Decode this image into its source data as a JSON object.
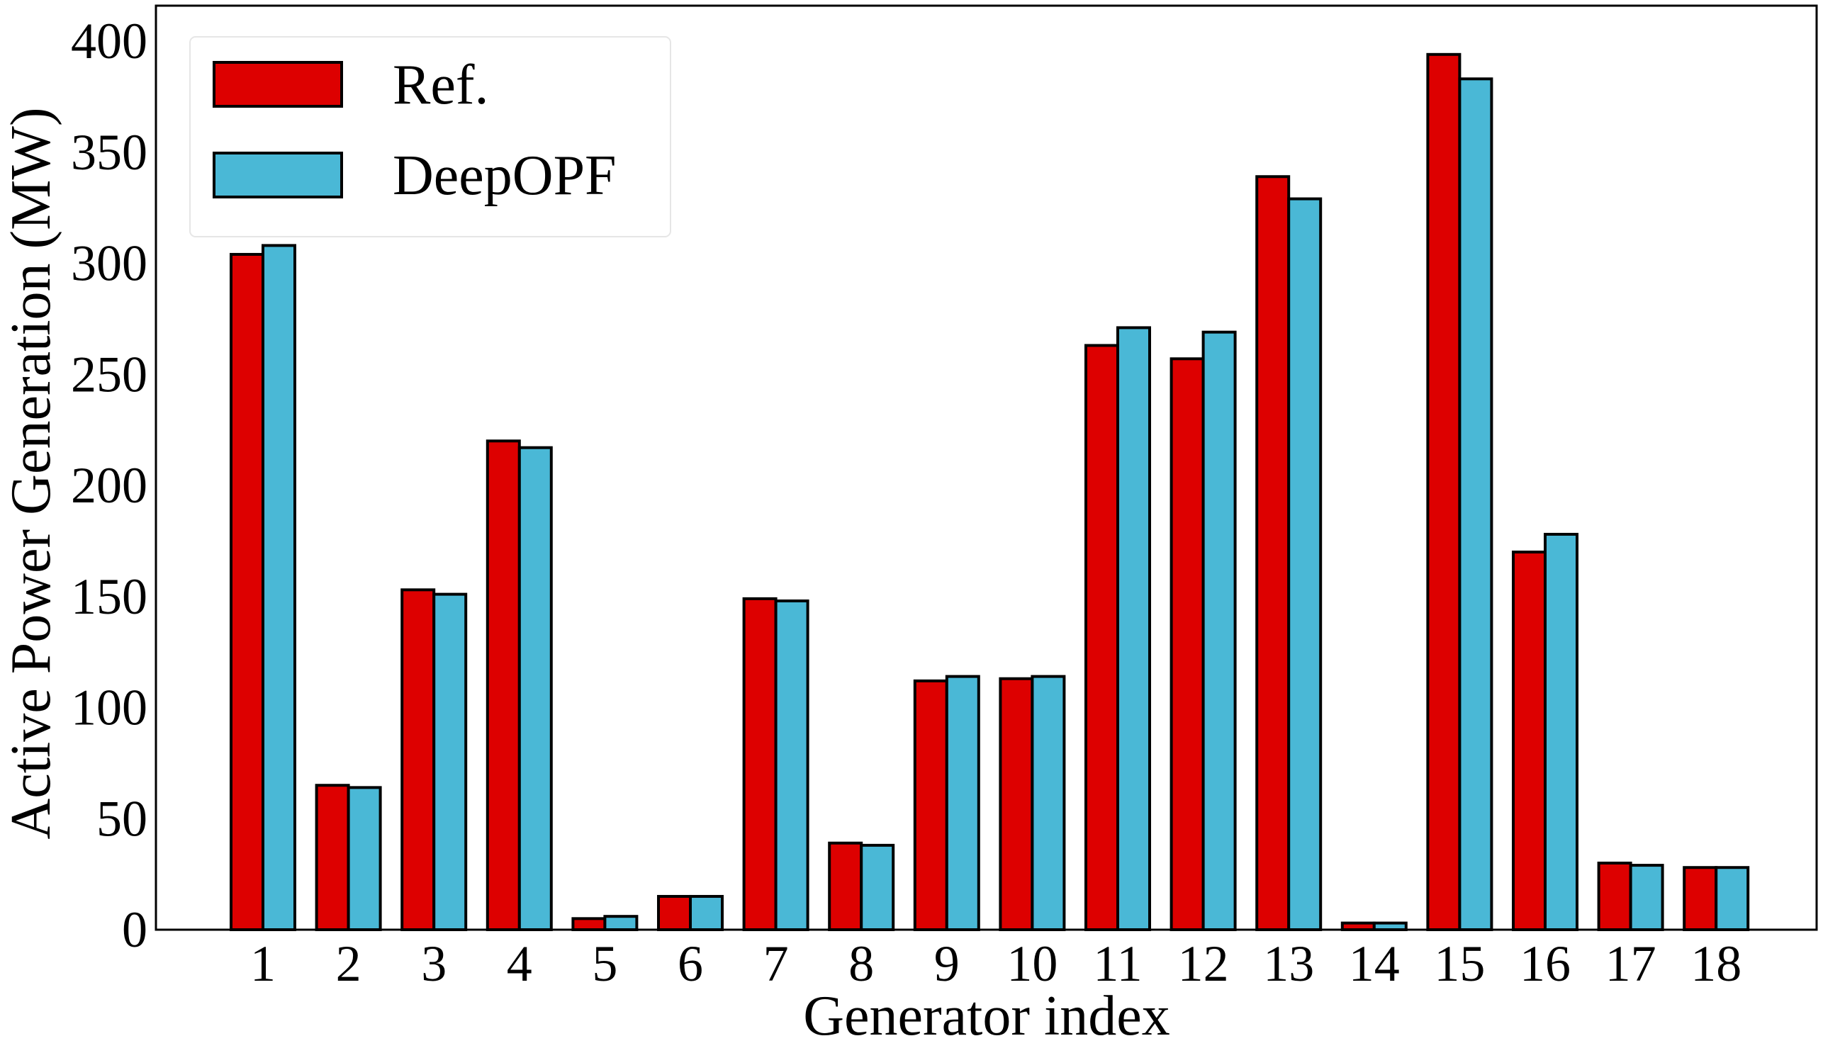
{
  "chart_data": {
    "type": "bar",
    "title": "",
    "xlabel": "Generator index",
    "ylabel": "Active Power Generation (MW)",
    "categories": [
      "1",
      "2",
      "3",
      "4",
      "5",
      "6",
      "7",
      "8",
      "9",
      "10",
      "11",
      "12",
      "13",
      "14",
      "15",
      "16",
      "17",
      "18"
    ],
    "series": [
      {
        "name": "Ref.",
        "color": "#dd0000",
        "values": [
          304,
          65,
          153,
          220,
          5,
          15,
          149,
          39,
          112,
          113,
          263,
          257,
          339,
          3,
          394,
          170,
          30,
          28
        ]
      },
      {
        "name": "DeepOPF",
        "color": "#4ab8d6",
        "values": [
          308,
          64,
          151,
          217,
          6,
          15,
          148,
          38,
          114,
          114,
          271,
          269,
          329,
          3,
          383,
          178,
          29,
          28
        ]
      }
    ],
    "ylim": [
      0,
      400
    ],
    "yticks": [
      "0",
      "50",
      "100",
      "150",
      "200",
      "250",
      "300",
      "350",
      "400"
    ],
    "grid": false,
    "legend_position": "top-left",
    "bar_edge_color": "#000000"
  }
}
